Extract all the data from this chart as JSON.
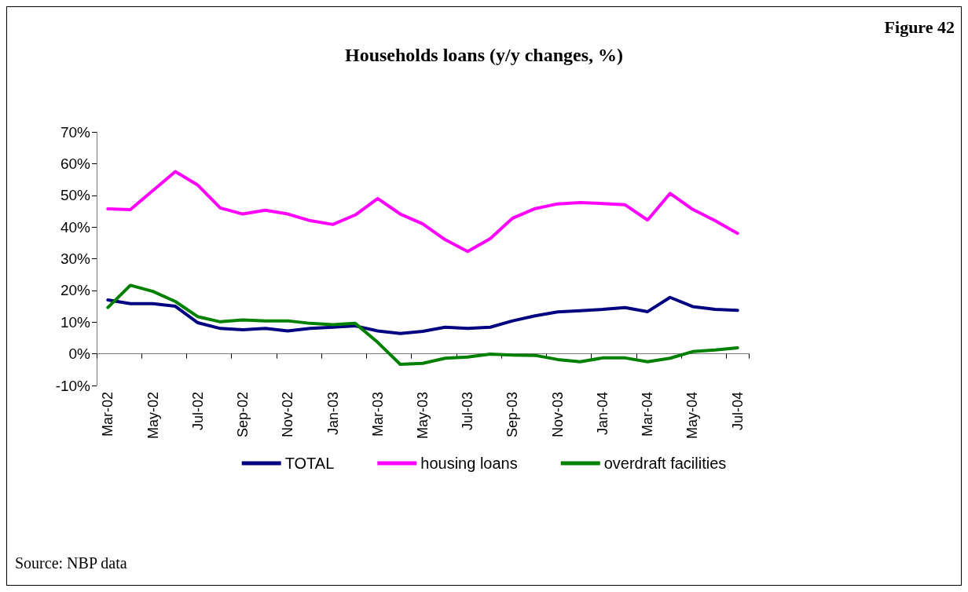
{
  "chart_data": {
    "type": "line",
    "title": "Households loans (y/y changes, %)",
    "annotations": [
      "Figure 42",
      "Source: NBP data"
    ],
    "categories": [
      "Mar-02",
      null,
      "May-02",
      null,
      "Jul-02",
      null,
      "Sep-02",
      null,
      "Nov-02",
      null,
      "Jan-03",
      null,
      "Mar-03",
      null,
      "May-03",
      null,
      "Jul-03",
      null,
      "Sep-03",
      null,
      "Nov-03",
      null,
      "Jan-04",
      null,
      "Mar-04",
      null,
      "May-04",
      null,
      "Jul-04"
    ],
    "series": [
      {
        "name": "TOTAL",
        "color": "#000080",
        "values": [
          17,
          15.8,
          15.8,
          15,
          9.8,
          8,
          7.6,
          8,
          7.2,
          8,
          8.4,
          8.8,
          7.2,
          6.4,
          7.1,
          8.4,
          8,
          8.4,
          10.4,
          12,
          13.2,
          13.6,
          14,
          14.6,
          13.3,
          17.8,
          14.9,
          14,
          13.7
        ]
      },
      {
        "name": "housing loans",
        "color": "#ff00ff",
        "values": [
          45.7,
          45.5,
          51.5,
          57.5,
          53.2,
          46,
          44.1,
          45.3,
          44.1,
          42,
          40.8,
          43.8,
          49,
          44.1,
          41,
          36,
          32.3,
          36.3,
          42.8,
          45.8,
          47.3,
          47.7,
          47.4,
          47,
          42.2,
          50.6,
          45.6,
          42,
          38
        ]
      },
      {
        "name": "overdraft facilities",
        "color": "#008000",
        "values": [
          14.6,
          21.6,
          19.7,
          16.5,
          11.7,
          10.1,
          10.7,
          10.4,
          10.4,
          9.6,
          9.2,
          9.6,
          3.6,
          -3.3,
          -3,
          -1.4,
          -1,
          -0.1,
          -0.4,
          -0.5,
          -1.8,
          -2.5,
          -1.3,
          -1.3,
          -2.5,
          -1.4,
          0.7,
          1.2,
          1.9
        ]
      }
    ],
    "ylim": [
      -10,
      70
    ],
    "yticks": [
      {
        "value": -10,
        "label": "-10%"
      },
      {
        "value": 0,
        "label": "0%"
      },
      {
        "value": 10,
        "label": "10%"
      },
      {
        "value": 20,
        "label": "20%"
      },
      {
        "value": 30,
        "label": "30%"
      },
      {
        "value": 40,
        "label": "40%"
      },
      {
        "value": 50,
        "label": "50%"
      },
      {
        "value": 60,
        "label": "60%"
      },
      {
        "value": 70,
        "label": "70%"
      }
    ],
    "legend": "bottom",
    "marker": "none",
    "line_style": "solid"
  }
}
